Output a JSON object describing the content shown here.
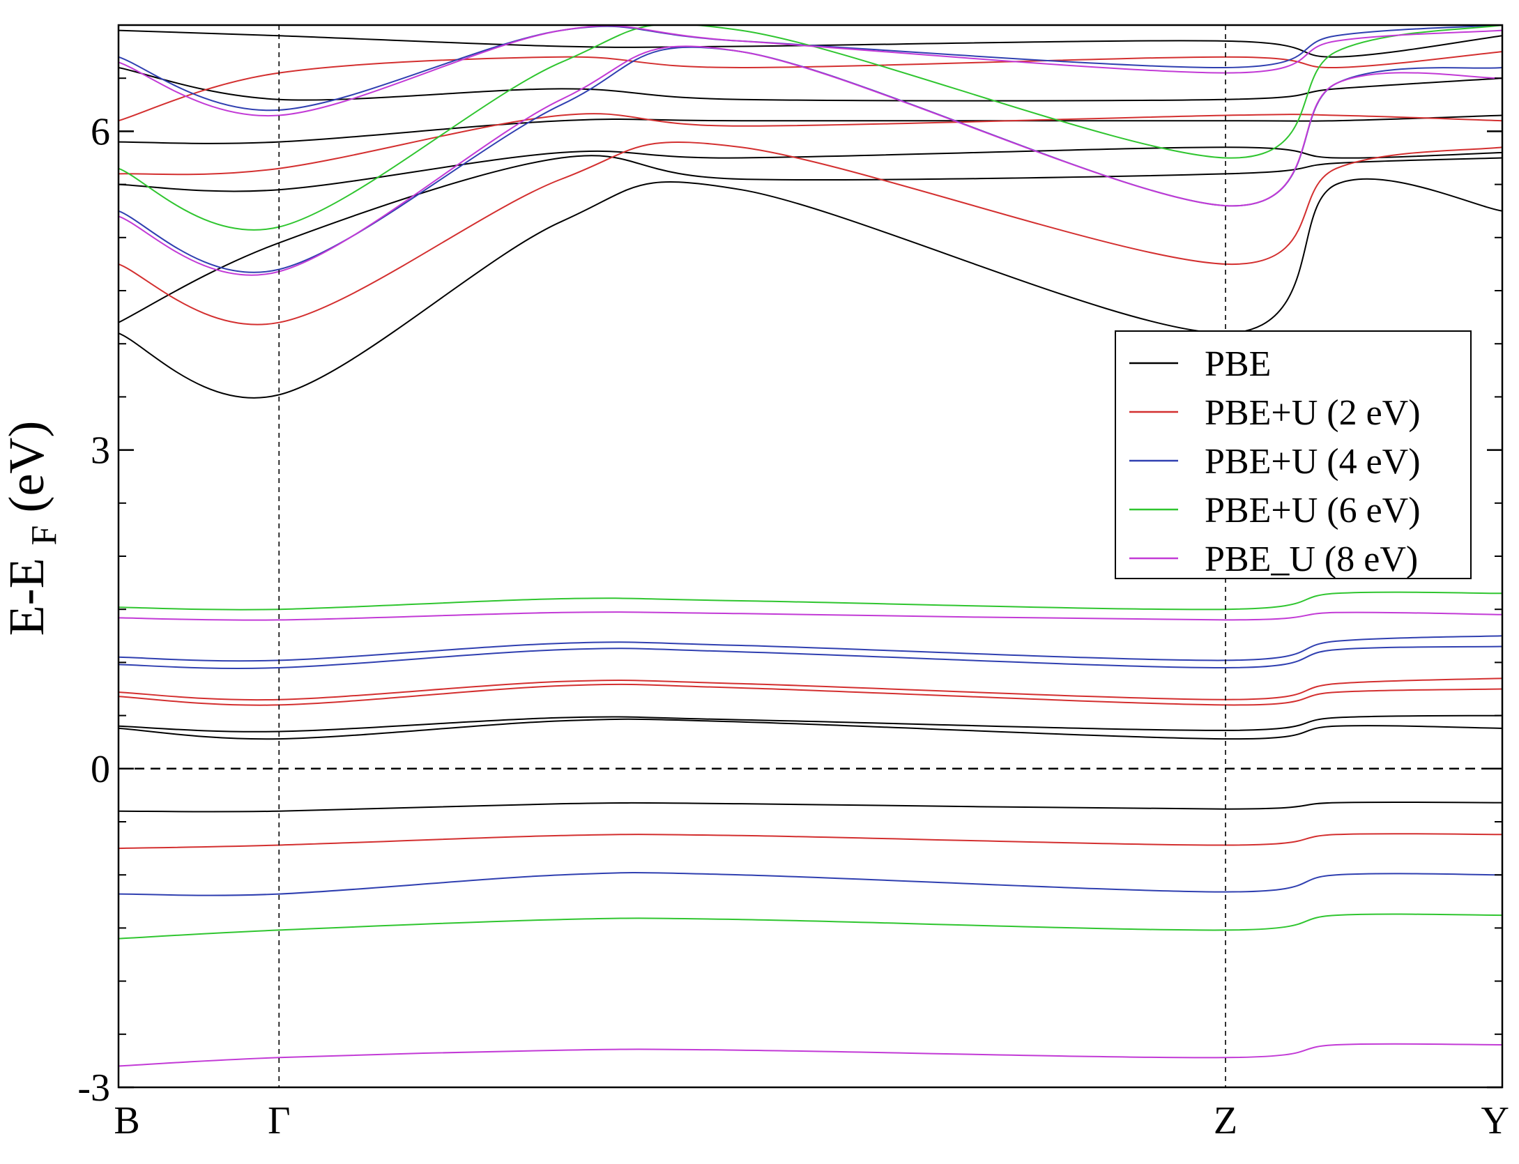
{
  "chart_data": {
    "type": "line",
    "ylabel": {
      "main": "E-E",
      "sub": "F",
      "unit": " (eV)"
    },
    "ylim": [
      -3,
      7
    ],
    "y_ticks": [
      -3,
      0,
      3,
      6
    ],
    "k_points": [
      {
        "label": "B",
        "x": 0
      },
      {
        "label": "Γ",
        "x": 0.116
      },
      {
        "label": "Z",
        "x": 0.8
      },
      {
        "label": "Y",
        "x": 1
      }
    ],
    "grid": false,
    "legend_position": "right",
    "fermi_level": 0,
    "series": [
      {
        "name": "PBE",
        "color": "#000000",
        "bands": [
          {
            "x": [
              0,
              0.116,
              0.32,
              0.45,
              0.8,
              0.88,
              1
            ],
            "y": [
              4.1,
              3.52,
              5.15,
              5.45,
              4.1,
              5.5,
              5.25
            ]
          },
          {
            "x": [
              0,
              0.116,
              0.32,
              0.45,
              0.8,
              0.88,
              1
            ],
            "y": [
              4.2,
              4.95,
              5.75,
              5.55,
              5.6,
              5.7,
              5.75
            ]
          },
          {
            "x": [
              0,
              0.116,
              0.32,
              0.45,
              0.8,
              0.88,
              1
            ],
            "y": [
              5.5,
              5.45,
              5.8,
              5.75,
              5.85,
              5.75,
              5.8
            ]
          },
          {
            "x": [
              0,
              0.116,
              0.32,
              0.45,
              0.8,
              0.88,
              1
            ],
            "y": [
              5.9,
              5.9,
              6.1,
              6.1,
              6.1,
              6.1,
              6.15
            ]
          },
          {
            "x": [
              0,
              0.116,
              0.32,
              0.45,
              0.8,
              0.88,
              1
            ],
            "y": [
              6.6,
              6.3,
              6.4,
              6.3,
              6.3,
              6.4,
              6.5
            ]
          },
          {
            "x": [
              0,
              0.116,
              0.32,
              0.45,
              0.8,
              0.88,
              1
            ],
            "y": [
              6.95,
              6.9,
              6.8,
              6.8,
              6.85,
              6.7,
              6.9
            ]
          },
          {
            "x": [
              0,
              0.116,
              0.32,
              0.45,
              0.8,
              0.88,
              1
            ],
            "y": [
              0.4,
              0.35,
              0.48,
              0.46,
              0.36,
              0.48,
              0.5
            ]
          },
          {
            "x": [
              0,
              0.116,
              0.32,
              0.45,
              0.8,
              0.88,
              1
            ],
            "y": [
              0.38,
              0.28,
              0.45,
              0.44,
              0.28,
              0.4,
              0.38
            ]
          },
          {
            "x": [
              0,
              0.116,
              0.32,
              0.45,
              0.8,
              0.88,
              1
            ],
            "y": [
              -0.4,
              -0.4,
              -0.33,
              -0.33,
              -0.38,
              -0.32,
              -0.32
            ]
          }
        ]
      },
      {
        "name": "PBE+U (2 eV)",
        "color": "#d32f2f",
        "bands": [
          {
            "x": [
              0,
              0.116,
              0.32,
              0.45,
              0.8,
              0.88,
              1
            ],
            "y": [
              4.75,
              4.2,
              5.55,
              5.85,
              4.75,
              5.65,
              5.85
            ]
          },
          {
            "x": [
              0,
              0.116,
              0.32,
              0.45,
              0.8,
              0.88,
              1
            ],
            "y": [
              5.6,
              5.65,
              6.15,
              6.05,
              6.15,
              6.15,
              6.1
            ]
          },
          {
            "x": [
              0,
              0.116,
              0.32,
              0.45,
              0.8,
              0.88,
              1
            ],
            "y": [
              6.1,
              6.55,
              6.7,
              6.6,
              6.7,
              6.6,
              6.75
            ]
          },
          {
            "x": [
              0,
              0.116,
              0.32,
              0.45,
              0.8,
              0.88,
              1
            ],
            "y": [
              0.72,
              0.65,
              0.82,
              0.8,
              0.65,
              0.8,
              0.85
            ]
          },
          {
            "x": [
              0,
              0.116,
              0.32,
              0.45,
              0.8,
              0.88,
              1
            ],
            "y": [
              0.68,
              0.6,
              0.78,
              0.76,
              0.6,
              0.72,
              0.75
            ]
          },
          {
            "x": [
              0,
              0.116,
              0.32,
              0.45,
              0.8,
              0.88,
              1
            ],
            "y": [
              -0.75,
              -0.72,
              -0.63,
              -0.63,
              -0.72,
              -0.62,
              -0.62
            ]
          }
        ]
      },
      {
        "name": "PBE+U (4 eV)",
        "color": "#2f3fb0",
        "bands": [
          {
            "x": [
              0,
              0.116,
              0.32,
              0.45,
              0.8,
              0.88,
              1
            ],
            "y": [
              5.25,
              4.7,
              6.25,
              6.75,
              5.3,
              6.45,
              6.6
            ]
          },
          {
            "x": [
              0,
              0.116,
              0.32,
              0.45,
              0.8,
              0.88,
              1
            ],
            "y": [
              6.7,
              6.2,
              6.95,
              6.85,
              6.6,
              6.9,
              7.0
            ]
          },
          {
            "x": [
              0,
              0.116,
              0.32,
              0.45,
              0.8,
              0.88,
              1
            ],
            "y": [
              1.05,
              1.02,
              1.18,
              1.16,
              1.02,
              1.2,
              1.25
            ]
          },
          {
            "x": [
              0,
              0.116,
              0.32,
              0.45,
              0.8,
              0.88,
              1
            ],
            "y": [
              0.98,
              0.95,
              1.12,
              1.1,
              0.95,
              1.12,
              1.15
            ]
          },
          {
            "x": [
              0,
              0.116,
              0.32,
              0.45,
              0.8,
              0.88,
              1
            ],
            "y": [
              -1.18,
              -1.18,
              -1.0,
              -1.0,
              -1.16,
              -1.0,
              -1.0
            ]
          }
        ]
      },
      {
        "name": "PBE+U (6 eV)",
        "color": "#2fc52f",
        "bands": [
          {
            "x": [
              0,
              0.116,
              0.32,
              0.45,
              0.8,
              0.88,
              1
            ],
            "y": [
              5.65,
              5.1,
              6.65,
              6.95,
              5.75,
              6.75,
              7.0
            ]
          },
          {
            "x": [
              0,
              0.116,
              0.32,
              0.45,
              0.8,
              0.88,
              1
            ],
            "y": [
              1.52,
              1.5,
              1.6,
              1.58,
              1.5,
              1.65,
              1.65
            ]
          },
          {
            "x": [
              0,
              0.116,
              0.32,
              0.45,
              0.8,
              0.88,
              1
            ],
            "y": [
              -1.6,
              -1.52,
              -1.42,
              -1.42,
              -1.52,
              -1.38,
              -1.38
            ]
          }
        ]
      },
      {
        "name": "PBE_U (8 eV)",
        "color": "#c23ad6",
        "bands": [
          {
            "x": [
              0,
              0.116,
              0.32,
              0.45,
              0.8,
              0.88,
              1
            ],
            "y": [
              5.2,
              4.68,
              6.3,
              6.75,
              5.3,
              6.45,
              6.5
            ]
          },
          {
            "x": [
              0,
              0.116,
              0.32,
              0.45,
              0.8,
              0.88,
              1
            ],
            "y": [
              6.65,
              6.15,
              6.95,
              6.85,
              6.55,
              6.85,
              6.95
            ]
          },
          {
            "x": [
              0,
              0.116,
              0.32,
              0.45,
              0.8,
              0.88,
              1
            ],
            "y": [
              1.42,
              1.4,
              1.47,
              1.46,
              1.4,
              1.47,
              1.45
            ]
          },
          {
            "x": [
              0,
              0.116,
              0.32,
              0.45,
              0.8,
              0.88,
              1
            ],
            "y": [
              -2.8,
              -2.72,
              -2.65,
              -2.65,
              -2.72,
              -2.6,
              -2.6
            ]
          }
        ]
      }
    ]
  }
}
